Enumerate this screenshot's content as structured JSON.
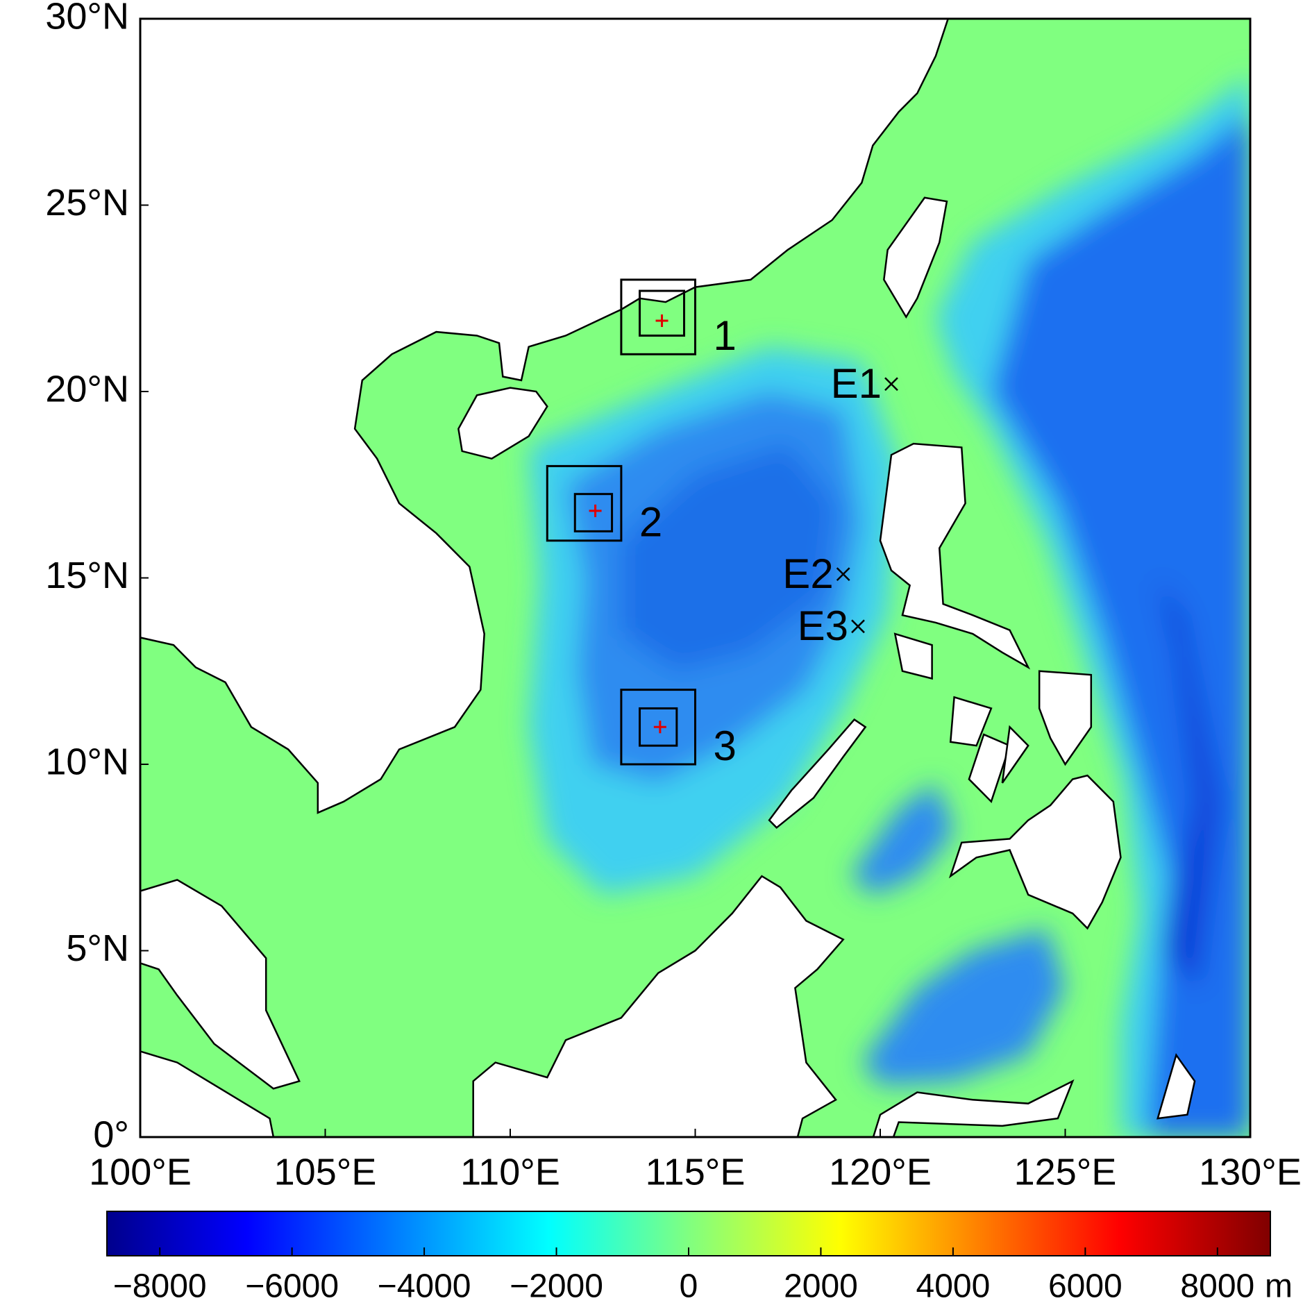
{
  "map": {
    "xlim": [
      100,
      130
    ],
    "ylim": [
      0,
      30
    ],
    "xticks": [
      {
        "value": 100,
        "label": "100°E"
      },
      {
        "value": 105,
        "label": "105°E"
      },
      {
        "value": 110,
        "label": "110°E"
      },
      {
        "value": 115,
        "label": "115°E"
      },
      {
        "value": 120,
        "label": "120°E"
      },
      {
        "value": 125,
        "label": "125°E"
      },
      {
        "value": 130,
        "label": "130°E"
      }
    ],
    "yticks": [
      {
        "value": 0,
        "label": "0°"
      },
      {
        "value": 5,
        "label": "5°N"
      },
      {
        "value": 10,
        "label": "10°N"
      },
      {
        "value": 15,
        "label": "15°N"
      },
      {
        "value": 20,
        "label": "20°N"
      },
      {
        "value": 25,
        "label": "25°N"
      },
      {
        "value": 30,
        "label": "30°N"
      }
    ],
    "boxes": [
      {
        "label": "1",
        "outer": [
          113,
          115,
          21,
          23
        ],
        "inner": [
          113.5,
          114.7,
          21.5,
          22.7
        ],
        "site": [
          114.1,
          21.9
        ]
      },
      {
        "label": "2",
        "outer": [
          111,
          113,
          16,
          18
        ],
        "inner": [
          111.75,
          112.75,
          16.25,
          17.25
        ],
        "site": [
          112.3,
          16.8
        ]
      },
      {
        "label": "3",
        "outer": [
          113,
          115,
          10,
          12
        ],
        "inner": [
          113.5,
          114.5,
          10.5,
          11.5
        ],
        "site": [
          114.05,
          11.0
        ]
      }
    ],
    "stations": [
      {
        "label": "E1",
        "lon": 120.3,
        "lat": 20.2
      },
      {
        "label": "E2",
        "lon": 119.0,
        "lat": 15.1
      },
      {
        "label": "E3",
        "lon": 119.4,
        "lat": 13.7
      }
    ],
    "colorbar": {
      "lim": [
        -8800,
        8800
      ],
      "ticks": [
        {
          "value": -8000,
          "label": "−8000"
        },
        {
          "value": -6000,
          "label": "−6000"
        },
        {
          "value": -4000,
          "label": "−4000"
        },
        {
          "value": -2000,
          "label": "−2000"
        },
        0,
        2000,
        4000,
        6000,
        8000
      ],
      "unit": "m"
    }
  }
}
